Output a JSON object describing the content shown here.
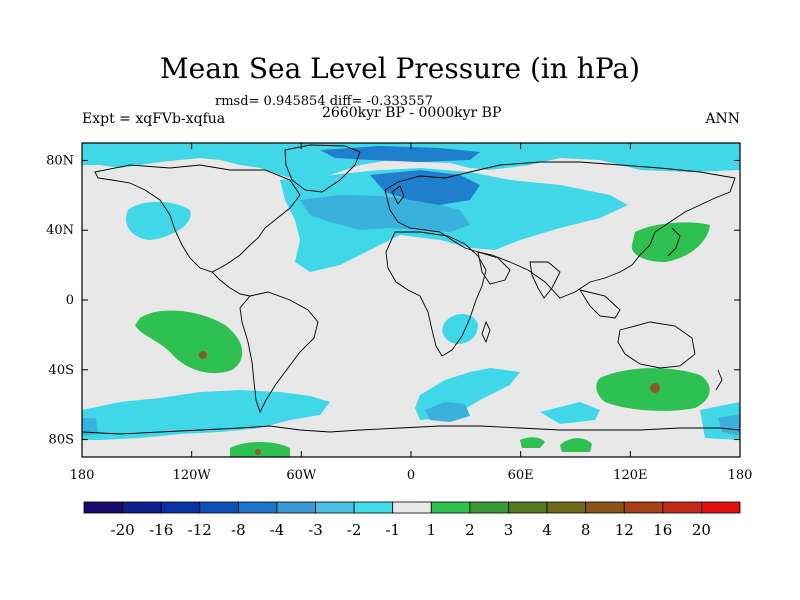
{
  "title": "Mean Sea Level Pressure (in hPa)",
  "stats_text": "rmsd= 0.945854 diff= -0.333557",
  "experiment_label": "Expt = xqFVb-xqfua",
  "period_label": "2660kyr BP - 0000kyr BP",
  "season_label": "ANN",
  "map": {
    "lon_range": [
      -180,
      180
    ],
    "lat_range": [
      -90,
      90
    ],
    "x_ticks": [
      {
        "lon": -180,
        "label": "180"
      },
      {
        "lon": -120,
        "label": "120W"
      },
      {
        "lon": -60,
        "label": "60W"
      },
      {
        "lon": 0,
        "label": "0"
      },
      {
        "lon": 60,
        "label": "60E"
      },
      {
        "lon": 120,
        "label": "120E"
      },
      {
        "lon": 180,
        "label": "180"
      }
    ],
    "y_ticks": [
      {
        "lat": 80,
        "label": "80N"
      },
      {
        "lat": 40,
        "label": "40N"
      },
      {
        "lat": 0,
        "label": "0"
      },
      {
        "lat": -40,
        "label": "40S"
      },
      {
        "lat": -80,
        "label": "80S"
      }
    ]
  },
  "colorbar": {
    "colors": [
      "#1a0a6e",
      "#0c1f8c",
      "#0a32a6",
      "#0f4fb8",
      "#1f74cc",
      "#3a9ad8",
      "#4cc0e4",
      "#40dcea",
      "#e8e8e8",
      "#2ec050",
      "#3a9a38",
      "#567a20",
      "#6e6a1a",
      "#8a5418",
      "#a8401a",
      "#c42a1a",
      "#e0100e"
    ],
    "labels": [
      "-20",
      "-16",
      "-12",
      "-8",
      "-4",
      "-3",
      "-2",
      "-1",
      "1",
      "2",
      "3",
      "4",
      "8",
      "12",
      "16",
      "20"
    ]
  },
  "anomaly_colors": {
    "light_blue": "#40d8e8",
    "mid_blue": "#3ab0dc",
    "dark_blue": "#1f7fcc",
    "green": "#2ec050",
    "dark_green": "#3a9a38",
    "brown": "#8a5a28",
    "background": "#e8e8e8"
  }
}
